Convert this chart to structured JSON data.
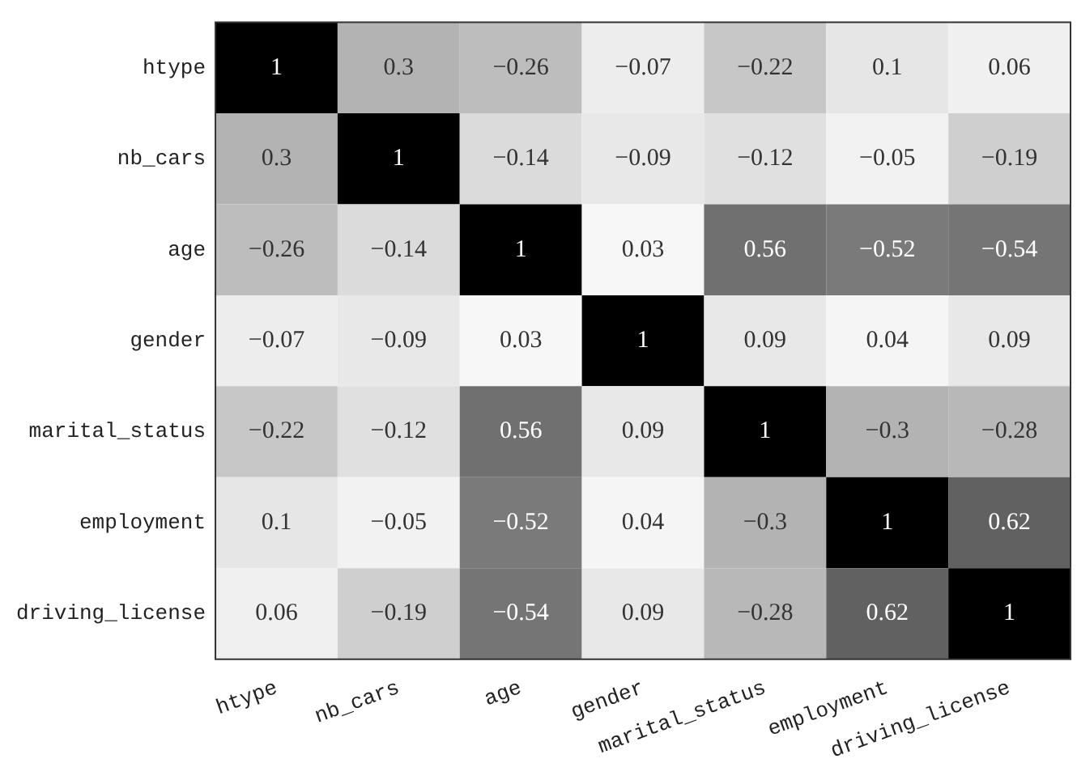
{
  "chart_data": {
    "type": "heatmap",
    "categories": [
      "htype",
      "nb_cars",
      "age",
      "gender",
      "marital_status",
      "employment",
      "driving_license"
    ],
    "y_categories": [
      "htype",
      "nb_cars",
      "age",
      "gender",
      "marital_status",
      "employment",
      "driving_license"
    ],
    "cells": [
      [
        1,
        0.3,
        -0.26,
        -0.07,
        -0.22,
        0.1,
        0.06
      ],
      [
        0.3,
        1,
        -0.14,
        -0.09,
        -0.12,
        -0.05,
        -0.19
      ],
      [
        -0.26,
        -0.14,
        1,
        0.03,
        0.56,
        -0.52,
        -0.54
      ],
      [
        -0.07,
        -0.09,
        0.03,
        1,
        0.09,
        0.04,
        0.09
      ],
      [
        -0.22,
        -0.12,
        0.56,
        0.09,
        1,
        -0.3,
        -0.28
      ],
      [
        0.1,
        -0.05,
        -0.52,
        0.04,
        -0.3,
        1,
        0.62
      ],
      [
        0.06,
        -0.19,
        -0.54,
        0.09,
        -0.28,
        0.62,
        1
      ]
    ],
    "cell_labels": [
      [
        "1",
        "0.3",
        "−0.26",
        "−0.07",
        "−0.22",
        "0.1",
        "0.06"
      ],
      [
        "0.3",
        "1",
        "−0.14",
        "−0.09",
        "−0.12",
        "−0.05",
        "−0.19"
      ],
      [
        "−0.26",
        "−0.14",
        "1",
        "0.03",
        "0.56",
        "−0.52",
        "−0.54"
      ],
      [
        "−0.07",
        "−0.09",
        "0.03",
        "1",
        "0.09",
        "0.04",
        "0.09"
      ],
      [
        "−0.22",
        "−0.12",
        "0.56",
        "0.09",
        "1",
        "−0.3",
        "−0.28"
      ],
      [
        "0.1",
        "−0.05",
        "−0.52",
        "0.04",
        "−0.3",
        "1",
        "0.62"
      ],
      [
        "0.06",
        "−0.19",
        "−0.54",
        "0.09",
        "−0.28",
        "0.62",
        "1"
      ]
    ],
    "data_labels": true,
    "grid": false,
    "legend": false
  }
}
